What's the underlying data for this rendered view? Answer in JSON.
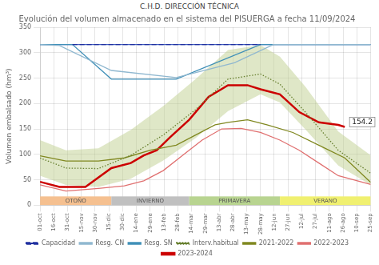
{
  "chart_data": {
    "type": "line",
    "title": "Evolución del volumen almacenado en el sistema del PISUERGA a fecha 11/09/2024",
    "subtitle": "C.H.D. DIRECCIÓN TÉCNICA",
    "y_label": "Volumen embalsado (hm³)",
    "xlim": [
      0,
      51
    ],
    "xticks": [
      {
        "value": 0,
        "label": "01-oct"
      },
      {
        "value": 2.125,
        "label": "16-oct"
      },
      {
        "value": 4.25,
        "label": "31-oct"
      },
      {
        "value": 6.375,
        "label": "15-nov"
      },
      {
        "value": 8.5,
        "label": "30-nov"
      },
      {
        "value": 10.625,
        "label": "15-dic"
      },
      {
        "value": 12.75,
        "label": "30-dic"
      },
      {
        "value": 14.875,
        "label": "14-ene"
      },
      {
        "value": 17,
        "label": "29-ene"
      },
      {
        "value": 19.125,
        "label": "13-feb"
      },
      {
        "value": 21.25,
        "label": "28-feb"
      },
      {
        "value": 23.375,
        "label": "14-mar"
      },
      {
        "value": 25.5,
        "label": "29-mar"
      },
      {
        "value": 27.625,
        "label": "13-abr"
      },
      {
        "value": 29.75,
        "label": "28-abr"
      },
      {
        "value": 31.875,
        "label": "13-may"
      },
      {
        "value": 34,
        "label": "28-may"
      },
      {
        "value": 36.125,
        "label": "12-jun"
      },
      {
        "value": 38.25,
        "label": "27-jun"
      },
      {
        "value": 40.375,
        "label": "12-jul"
      },
      {
        "value": 42.5,
        "label": "27-jul"
      },
      {
        "value": 44.625,
        "label": "11-ago"
      },
      {
        "value": 46.75,
        "label": "26-ago"
      },
      {
        "value": 48.875,
        "label": "10-sep"
      },
      {
        "value": 51,
        "label": "25-sep"
      }
    ],
    "ylim": [
      0,
      350
    ],
    "yticks": [
      0,
      50,
      100,
      150,
      200,
      250,
      300,
      350
    ],
    "grid": true,
    "legend": "bottom",
    "series": [
      {
        "name": "Capacidad",
        "color": "#2030a0",
        "line_style": "dashed",
        "x": [
          5,
          34
        ],
        "values": [
          316,
          316
        ]
      },
      {
        "name": "Resg. CN",
        "color": "#90b8d0",
        "line_style": "solid",
        "x": [
          0,
          3,
          11,
          21,
          30,
          36,
          51
        ],
        "values": [
          316,
          314,
          265,
          251,
          280,
          316,
          316
        ]
      },
      {
        "name": "Resg. SN",
        "color": "#4090b8",
        "line_style": "solid",
        "x": [
          0,
          5,
          11,
          21,
          34,
          51
        ],
        "values": [
          316,
          316,
          248,
          248,
          316,
          316
        ]
      },
      {
        "name": "Interv.habitual",
        "color": "#688030",
        "line_style": "dotted",
        "x": [
          0,
          4,
          9,
          14,
          19,
          24,
          29,
          34,
          37,
          41,
          46,
          51
        ],
        "values": [
          93,
          73,
          72,
          98,
          138,
          188,
          248,
          258,
          238,
          182,
          108,
          63
        ]
      },
      {
        "name": "2021-2022",
        "color": "#808820",
        "line_style": "solid",
        "x": [
          0,
          4,
          9,
          13,
          17,
          21,
          24,
          27,
          29,
          32,
          35,
          39,
          43,
          47,
          51
        ],
        "values": [
          97,
          87,
          87,
          93,
          108,
          118,
          138,
          158,
          163,
          168,
          158,
          143,
          118,
          93,
          45
        ]
      },
      {
        "name": "2022-2023",
        "color": "#e07070",
        "line_style": "solid",
        "x": [
          0,
          4,
          9,
          13,
          16,
          19,
          22,
          25,
          28,
          31,
          34,
          37,
          40,
          43,
          46,
          51
        ],
        "values": [
          40,
          28,
          33,
          38,
          48,
          68,
          98,
          128,
          150,
          151,
          143,
          128,
          108,
          83,
          58,
          41
        ]
      },
      {
        "name": "2023-2024",
        "color": "#cc0000",
        "line_style": "solid",
        "x": [
          0,
          3,
          7,
          11,
          14,
          16,
          18,
          20,
          23,
          26,
          29,
          32,
          34,
          37,
          40,
          43,
          46,
          47
        ],
        "values": [
          46,
          36,
          36,
          73,
          83,
          98,
          108,
          133,
          168,
          213,
          236,
          236,
          228,
          218,
          183,
          163,
          158,
          154
        ]
      },
      {
        "color": "#4060c0",
        "line_style": "solid",
        "x": [
          0,
          51
        ],
        "values": [
          316,
          316
        ]
      }
    ],
    "bands": [
      {
        "color": "#c0d090",
        "x": [
          0,
          4,
          9,
          14,
          19,
          24,
          29,
          34,
          37,
          41,
          46,
          51
        ],
        "lower": [
          58,
          40,
          36,
          52,
          88,
          132,
          185,
          218,
          202,
          148,
          78,
          40
        ],
        "upper": [
          128,
          108,
          112,
          148,
          195,
          248,
          305,
          315,
          292,
          232,
          145,
          98
        ]
      }
    ],
    "season_bars": [
      {
        "label": "OTOÑO",
        "color": "#f5c090",
        "xstart": 0,
        "xend": 11
      },
      {
        "label": "INVIERNO",
        "color": "#c0c0c0",
        "xstart": 11,
        "xend": 23
      },
      {
        "label": "PRIMAVERA",
        "color": "#b8d490",
        "xstart": 23,
        "xend": 37
      },
      {
        "label": "VERANO",
        "color": "#f0f070",
        "xstart": 37,
        "xend": 51
      }
    ],
    "annotations": [
      {
        "text": "154.2",
        "x": 47,
        "y": 154
      }
    ]
  }
}
